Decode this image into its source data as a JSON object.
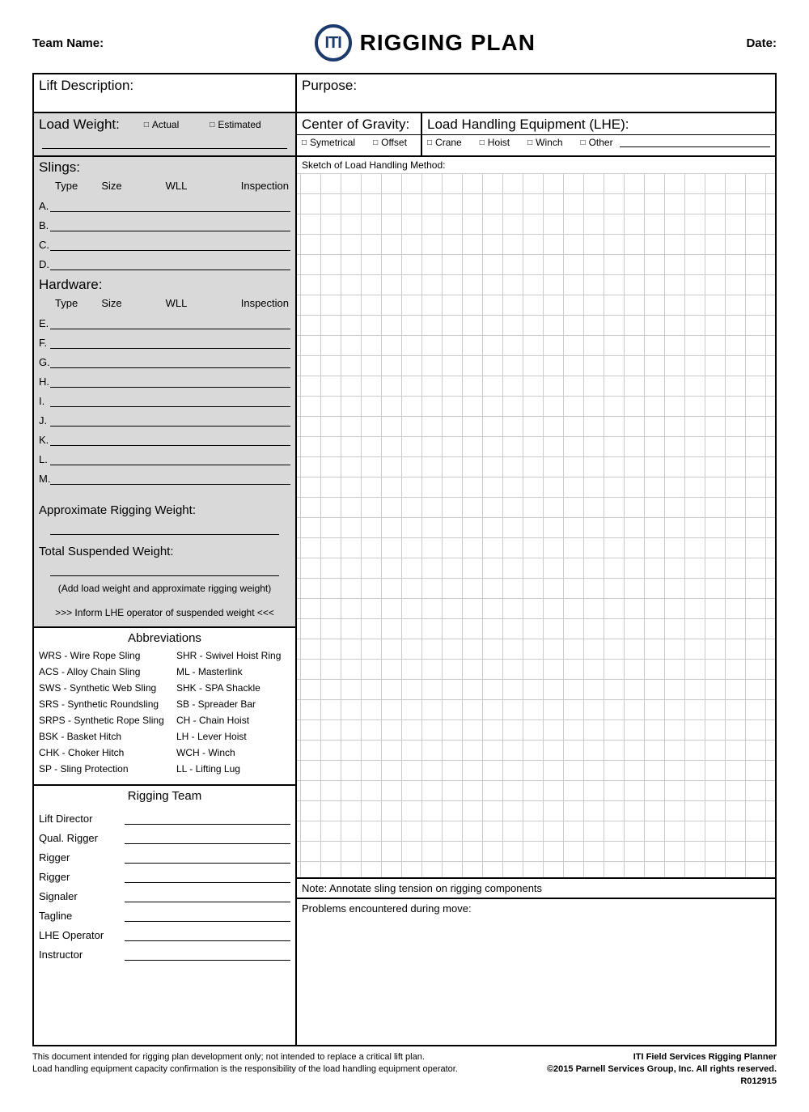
{
  "header": {
    "team_name_label": "Team Name:",
    "date_label": "Date:",
    "logo_text": "ITI",
    "title": "RIGGING PLAN"
  },
  "top": {
    "lift_desc": "Lift Description:",
    "purpose": "Purpose:",
    "load_weight": "Load Weight:",
    "actual": "Actual",
    "estimated": "Estimated",
    "cog": "Center of Gravity:",
    "symetrical": "Symetrical",
    "offset": "Offset",
    "lhe": "Load Handling Equipment (LHE):",
    "crane": "Crane",
    "hoist": "Hoist",
    "winch": "Winch",
    "other": "Other"
  },
  "left": {
    "slings": "Slings:",
    "hardware": "Hardware:",
    "col_type": "Type",
    "col_size": "Size",
    "col_wll": "WLL",
    "col_insp": "Inspection",
    "sling_rows": [
      "A.",
      "B.",
      "C.",
      "D."
    ],
    "hw_rows": [
      "E.",
      "F.",
      "G.",
      "H.",
      "I.",
      "J.",
      "K.",
      "L.",
      "M."
    ],
    "approx": "Approximate Rigging Weight:",
    "total": "Total Suspended Weight:",
    "hint": "(Add load weight and approximate rigging weight)",
    "inform": ">>> Inform LHE operator of suspended weight <<<",
    "abbr_head": "Abbreviations",
    "abbr": [
      [
        "WRS - Wire Rope Sling",
        "SHR - Swivel Hoist Ring"
      ],
      [
        "ACS - Alloy Chain Sling",
        "ML - Masterlink"
      ],
      [
        "SWS - Synthetic Web Sling",
        "SHK - SPA Shackle"
      ],
      [
        "SRS - Synthetic Roundsling",
        "SB - Spreader Bar"
      ],
      [
        "SRPS - Synthetic Rope Sling",
        "CH - Chain Hoist"
      ],
      [
        "BSK - Basket Hitch",
        "LH - Lever Hoist"
      ],
      [
        "CHK - Choker Hitch",
        "WCH - Winch"
      ],
      [
        "SP - Sling Protection",
        "LL - Lifting Lug"
      ]
    ],
    "team_head": "Rigging Team",
    "team": [
      "Lift Director",
      "Qual. Rigger",
      "Rigger",
      "Rigger",
      "Signaler",
      "Tagline",
      "LHE Operator",
      "Instructor"
    ]
  },
  "right": {
    "sketch": "Sketch of Load Handling Method:",
    "note": "Note: Annotate sling tension on rigging components",
    "problems": "Problems encountered during move:"
  },
  "footer": {
    "l1": "This document intended for rigging plan development only; not intended to replace a critical lift plan.",
    "l2": "Load handling equipment capacity confirmation is the responsibility of the load handling equipment operator.",
    "r1": "ITI Field Services Rigging Planner",
    "r2": "©2015 Parnell Services Group, Inc.  All rights reserved.",
    "r3": "R012915"
  }
}
